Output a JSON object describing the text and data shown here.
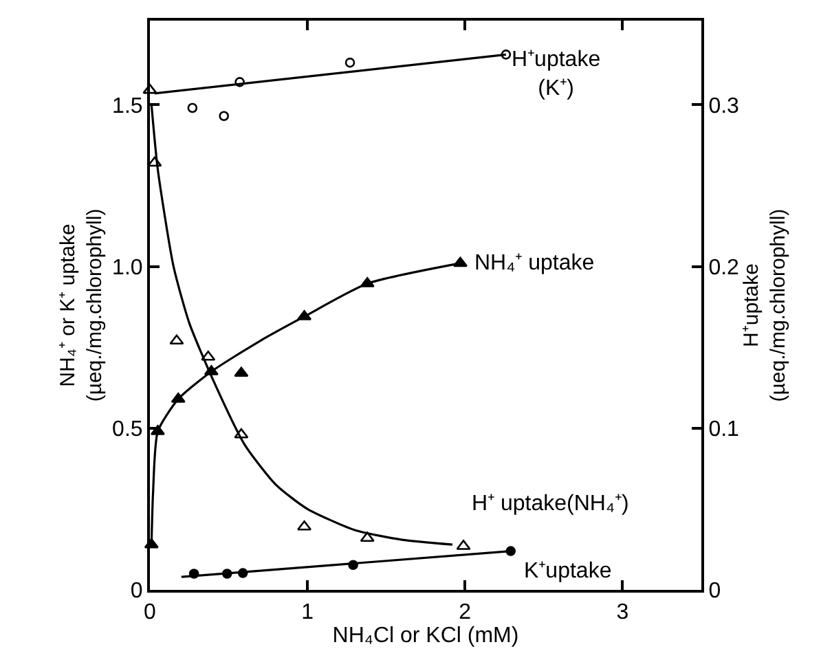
{
  "chart_data": {
    "type": "scatter",
    "xlabel": "NH₄Cl or KCl (mM)",
    "ylabel": "NH₄⁺ or K⁺ uptake\n(µeq./mg.chlorophyll)",
    "y2label": "H⁺uptake\n(µeq./mg.chlorophyll)",
    "xlim": [
      0,
      3.5
    ],
    "xticks": [
      0,
      1,
      2,
      3
    ],
    "ylim": [
      0,
      1.76
    ],
    "yticks": [
      0,
      0.5,
      {
        "value": 1.0,
        "label": "1.0"
      },
      1.5
    ],
    "y2lim": [
      0,
      0.352
    ],
    "y2ticks": [
      0,
      0.1,
      0.2,
      0.3
    ],
    "legend": false,
    "series": [
      {
        "name": "H⁺uptake\n(K⁺)",
        "axis": "y2",
        "color": "#000000",
        "marker": "circle-open",
        "x": [
          0.27,
          0.47,
          0.57,
          1.27,
          2.26
        ],
        "values": [
          0.298,
          0.293,
          0.314,
          0.326,
          0.331
        ]
      },
      {
        "type": "line",
        "axis": "y2",
        "color": "#000000",
        "marker": "none",
        "line_style": "solid",
        "x": [
          0.03,
          2.26
        ],
        "values": [
          0.307,
          0.331
        ]
      },
      {
        "name": "H⁺ uptake(NH₄⁺)",
        "axis": "y2",
        "color": "#000000",
        "marker": "triangle-open",
        "x": [
          0.0,
          0.03,
          0.17,
          0.37,
          0.58,
          0.98,
          1.38,
          1.99
        ],
        "values": [
          0.309,
          0.264,
          0.154,
          0.144,
          0.096,
          0.039,
          0.032,
          0.027
        ]
      },
      {
        "type": "line",
        "axis": "y2",
        "color": "#000000",
        "marker": "none",
        "line_style": "solid",
        "x": [
          0.01,
          0.05,
          0.15,
          0.25,
          0.4,
          0.6,
          0.8,
          1.0,
          1.3,
          1.6,
          1.92
        ],
        "values": [
          0.3,
          0.26,
          0.2,
          0.165,
          0.13,
          0.09,
          0.065,
          0.05,
          0.037,
          0.031,
          0.028
        ]
      },
      {
        "name": "NH₄⁺ uptake",
        "color": "#000000",
        "marker": "triangle",
        "x": [
          0.01,
          0.05,
          0.18,
          0.39,
          0.58,
          0.98,
          1.38,
          1.97
        ],
        "values": [
          0.14,
          0.49,
          0.59,
          0.675,
          0.67,
          0.845,
          0.947,
          1.01
        ]
      },
      {
        "type": "line",
        "color": "#000000",
        "marker": "none",
        "line_style": "solid",
        "x": [
          0.01,
          0.02,
          0.05,
          0.18,
          0.39,
          0.7,
          0.98,
          1.38,
          1.97
        ],
        "values": [
          0.14,
          0.3,
          0.49,
          0.59,
          0.675,
          0.77,
          0.845,
          0.947,
          1.01
        ]
      },
      {
        "name": "K⁺uptake",
        "color": "#000000",
        "marker": "circle",
        "x": [
          0.28,
          0.49,
          0.59,
          1.29,
          2.29
        ],
        "values": [
          0.05,
          0.05,
          0.052,
          0.077,
          0.12
        ]
      },
      {
        "type": "line",
        "color": "#000000",
        "marker": "none",
        "line_style": "solid",
        "x": [
          0.2,
          2.29
        ],
        "values": [
          0.04,
          0.12
        ]
      }
    ]
  }
}
